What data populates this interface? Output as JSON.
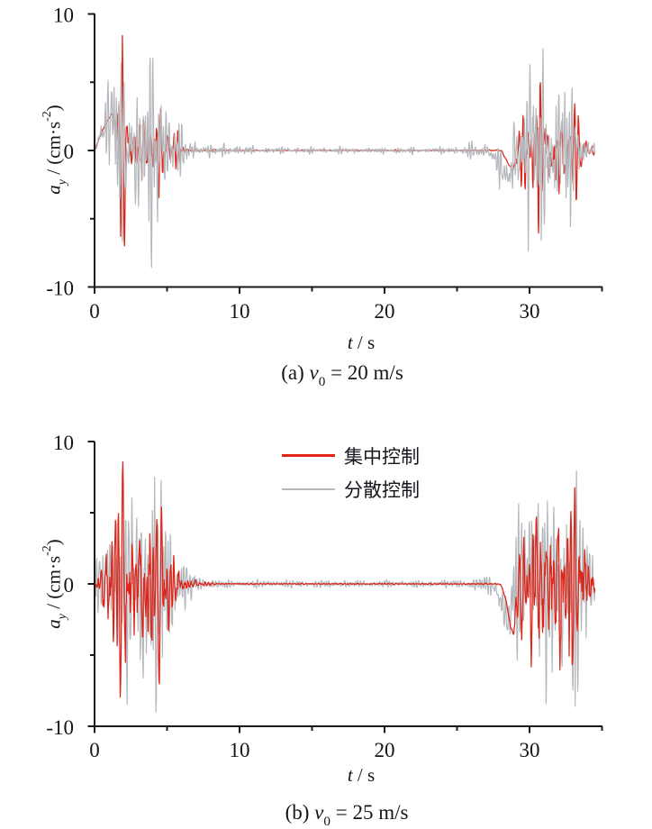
{
  "figure": {
    "ylabel": {
      "var": "a",
      "sub": "y",
      "mid": " / (cm·s",
      "sup": "-2",
      "end": ")"
    },
    "xlabel": {
      "var": "t",
      "rest": " / s"
    },
    "captions": [
      {
        "prefix": "(a) ",
        "var": "v",
        "sub": "0",
        "rest": " = 20 m/s"
      },
      {
        "prefix": "(b) ",
        "var": "v",
        "sub": "0",
        "rest": " = 25 m/s"
      }
    ],
    "legend": {
      "items": [
        {
          "label": "集中控制",
          "color": "#e02317",
          "thickness": 3
        },
        {
          "label": "分散控制",
          "color": "#b4b8bd",
          "thickness": 2
        }
      ]
    }
  },
  "chart_data": [
    {
      "type": "line",
      "title": "",
      "xlabel": "t / s",
      "ylabel": "a_y / (cm·s-2)",
      "caption": "(a) v0 = 20 m/s",
      "xlim": [
        0,
        35
      ],
      "ylim": [
        -10,
        10
      ],
      "xticks": [
        0,
        10,
        20,
        30
      ],
      "xticks_minor": [
        5,
        15,
        25,
        35
      ],
      "yticks": [
        10,
        0,
        -10
      ],
      "yticks_minor": [
        5,
        -5
      ],
      "series": [
        {
          "name": "集中控制",
          "key": "centralized",
          "color": "#e02317",
          "width": 1.25,
          "seed": 5,
          "scale": 1.55,
          "noise": 0.42,
          "flipwin": [
            1.5,
            2.1
          ],
          "flipsign": 1,
          "am": [
            0.62,
            0.38,
            0.32
          ],
          "freqs": [
            [
              1.8,
              0.1
            ],
            [
              2.6,
              0.22
            ],
            [
              3.4,
              0.3
            ],
            [
              4.2,
              0.24
            ],
            [
              5.0,
              0.14
            ]
          ],
          "envelope": [
            [
              0,
              0.05
            ],
            [
              0.9,
              0.12
            ],
            [
              1.25,
              0.6
            ],
            [
              1.5,
              3.5
            ],
            [
              1.75,
              8.5
            ],
            [
              1.95,
              6
            ],
            [
              2.2,
              3.6
            ],
            [
              2.6,
              4
            ],
            [
              3,
              4.4
            ],
            [
              3.4,
              4.6
            ],
            [
              3.8,
              4
            ],
            [
              4.2,
              3.4
            ],
            [
              4.6,
              2.9
            ],
            [
              5,
              2.5
            ],
            [
              5.4,
              1.8
            ],
            [
              5.8,
              1.1
            ],
            [
              6.2,
              0.6
            ],
            [
              6.6,
              0.3
            ],
            [
              7,
              0.15
            ],
            [
              7.8,
              0.08
            ],
            [
              9,
              0.05
            ],
            [
              24,
              0.05
            ],
            [
              26,
              0.05
            ],
            [
              27.5,
              0.06
            ],
            [
              28.4,
              0.1
            ],
            [
              28.8,
              0.25
            ],
            [
              29.1,
              1.4
            ],
            [
              29.4,
              2.8
            ],
            [
              29.8,
              3.9
            ],
            [
              30.2,
              4.8
            ],
            [
              30.6,
              5.3
            ],
            [
              31,
              5.5
            ],
            [
              31.4,
              4.8
            ],
            [
              31.8,
              5.2
            ],
            [
              32.2,
              5.6
            ],
            [
              32.6,
              4.6
            ],
            [
              33,
              3.8
            ],
            [
              33.4,
              2.5
            ],
            [
              33.8,
              1.7
            ],
            [
              34.2,
              0.9
            ],
            [
              34.5,
              0.45
            ]
          ],
          "base": [
            [
              0,
              0
            ],
            [
              0.25,
              0.7
            ],
            [
              0.6,
              1.6
            ],
            [
              0.95,
              2.3
            ],
            [
              1.2,
              2.65
            ],
            [
              1.4,
              2.3
            ],
            [
              1.6,
              0.8
            ],
            [
              1.75,
              0
            ],
            [
              28.05,
              0
            ],
            [
              28.35,
              -0.6
            ],
            [
              28.65,
              -1.2
            ],
            [
              28.9,
              -1.4
            ],
            [
              29.1,
              -0.6
            ],
            [
              29.3,
              0
            ]
          ]
        },
        {
          "name": "分散控制",
          "key": "distributed",
          "color": "#b4b8bd",
          "width": 1.2,
          "seed": 11,
          "scale": 1.6,
          "noise": 0.5,
          "flipwin": [
            3.9,
            4.7
          ],
          "flipsign": -1,
          "am": [
            0.72,
            0.28,
            0.45
          ],
          "freqs": [
            [
              2.5,
              0.05
            ],
            [
              3.5,
              0.12
            ],
            [
              4.5,
              0.3
            ],
            [
              5.5,
              0.3
            ],
            [
              6.5,
              0.23
            ]
          ],
          "envelope": [
            [
              0,
              0.25
            ],
            [
              0.4,
              1.2
            ],
            [
              0.8,
              2.6
            ],
            [
              1.2,
              3.9
            ],
            [
              1.5,
              5.3
            ],
            [
              1.9,
              5.8
            ],
            [
              2.3,
              4.8
            ],
            [
              2.7,
              5.3
            ],
            [
              3.1,
              4.3
            ],
            [
              3.5,
              4.8
            ],
            [
              3.9,
              5.7
            ],
            [
              4.3,
              6.2
            ],
            [
              4.7,
              5
            ],
            [
              5.1,
              3.6
            ],
            [
              5.5,
              2.5
            ],
            [
              5.9,
              1.7
            ],
            [
              6.3,
              1.1
            ],
            [
              6.7,
              0.8
            ],
            [
              7.1,
              0.55
            ],
            [
              7.6,
              0.4
            ],
            [
              8.4,
              0.35
            ],
            [
              9.3,
              0.5
            ],
            [
              10,
              0.3
            ],
            [
              11,
              0.22
            ],
            [
              13,
              0.2
            ],
            [
              24,
              0.2
            ],
            [
              25.3,
              0.3
            ],
            [
              26,
              0.55
            ],
            [
              26.6,
              0.45
            ],
            [
              27.2,
              0.8
            ],
            [
              27.7,
              1.3
            ],
            [
              28.2,
              1.2
            ],
            [
              28.6,
              1.6
            ],
            [
              28.9,
              2.6
            ],
            [
              29.2,
              4.2
            ],
            [
              29.6,
              5.4
            ],
            [
              30,
              6
            ],
            [
              30.4,
              5.6
            ],
            [
              30.8,
              6.1
            ],
            [
              31.2,
              5.3
            ],
            [
              31.6,
              5
            ],
            [
              32,
              5.5
            ],
            [
              32.4,
              5.7
            ],
            [
              32.8,
              4.4
            ],
            [
              33.2,
              3.1
            ],
            [
              33.6,
              1.9
            ],
            [
              34,
              1.1
            ],
            [
              34.5,
              0.7
            ]
          ],
          "base": [
            [
              0,
              0
            ],
            [
              0.3,
              0.8
            ],
            [
              0.7,
              1.8
            ],
            [
              1,
              2.3
            ],
            [
              1.25,
              2.6
            ],
            [
              1.45,
              1.6
            ],
            [
              1.6,
              0
            ],
            [
              27.3,
              0
            ],
            [
              27.8,
              -0.9
            ],
            [
              28.3,
              -1.7
            ],
            [
              28.6,
              -2
            ],
            [
              28.9,
              -0.8
            ],
            [
              29.15,
              0
            ]
          ]
        }
      ]
    },
    {
      "type": "line",
      "title": "",
      "xlabel": "t / s",
      "ylabel": "a_y / (cm·s-2)",
      "caption": "(b) v0 = 25 m/s",
      "xlim": [
        0,
        35
      ],
      "ylim": [
        -10,
        10
      ],
      "xticks": [
        0,
        10,
        20,
        30
      ],
      "xticks_minor": [
        5,
        15,
        25,
        35
      ],
      "yticks": [
        10,
        0,
        -10
      ],
      "yticks_minor": [
        5,
        -5
      ],
      "legend": [
        "集中控制",
        "分散控制"
      ],
      "series": [
        {
          "name": "分散控制",
          "key": "distributed",
          "color": "#b4b8bd",
          "width": 1.2,
          "seed": 23,
          "scale": 1.6,
          "noise": 0.5,
          "flipwin": [
            3.5,
            4.6
          ],
          "flipsign": -1,
          "am": [
            0.72,
            0.28,
            0.45
          ],
          "freqs": [
            [
              2.5,
              0.05
            ],
            [
              3.5,
              0.12
            ],
            [
              4.5,
              0.3
            ],
            [
              5.5,
              0.3
            ],
            [
              6.5,
              0.23
            ]
          ],
          "envelope": [
            [
              0,
              1.6
            ],
            [
              0.4,
              2.6
            ],
            [
              0.8,
              3.6
            ],
            [
              1.2,
              4.4
            ],
            [
              1.6,
              5.4
            ],
            [
              2,
              6.4
            ],
            [
              2.4,
              6.8
            ],
            [
              2.8,
              7.4
            ],
            [
              3.2,
              8
            ],
            [
              3.6,
              8.8
            ],
            [
              4,
              9.2
            ],
            [
              4.4,
              8.4
            ],
            [
              4.8,
              6.8
            ],
            [
              5.2,
              5
            ],
            [
              5.6,
              3.4
            ],
            [
              6,
              2.2
            ],
            [
              6.4,
              1.4
            ],
            [
              6.8,
              0.8
            ],
            [
              7.2,
              0.5
            ],
            [
              8,
              0.35
            ],
            [
              9,
              0.28
            ],
            [
              10,
              0.24
            ],
            [
              24,
              0.24
            ],
            [
              25.5,
              0.3
            ],
            [
              26.5,
              0.45
            ],
            [
              27.2,
              0.7
            ],
            [
              27.8,
              1.1
            ],
            [
              28.3,
              1.4
            ],
            [
              28.7,
              2
            ],
            [
              29,
              3.2
            ],
            [
              29.4,
              5
            ],
            [
              29.8,
              6
            ],
            [
              30.2,
              7
            ],
            [
              30.6,
              7.4
            ],
            [
              31,
              6.8
            ],
            [
              31.4,
              6.4
            ],
            [
              31.8,
              7.4
            ],
            [
              32.2,
              7.8
            ],
            [
              32.6,
              8.3
            ],
            [
              33,
              8.8
            ],
            [
              33.4,
              7
            ],
            [
              33.8,
              5.8
            ],
            [
              34.2,
              3.8
            ],
            [
              34.5,
              2
            ]
          ],
          "base": [
            [
              27.4,
              0
            ],
            [
              27.9,
              -0.9
            ],
            [
              28.3,
              -2
            ],
            [
              28.6,
              -2.4
            ],
            [
              28.9,
              -1
            ],
            [
              29.2,
              0
            ]
          ]
        },
        {
          "name": "集中控制",
          "key": "centralized",
          "color": "#e02317",
          "width": 1.25,
          "seed": 17,
          "scale": 1.55,
          "noise": 0.42,
          "flipwin": [
            1.6,
            2.2
          ],
          "flipsign": 1,
          "am": [
            0.62,
            0.38,
            0.32
          ],
          "freqs": [
            [
              1.8,
              0.1
            ],
            [
              2.6,
              0.22
            ],
            [
              3.4,
              0.3
            ],
            [
              4.2,
              0.24
            ],
            [
              5.0,
              0.14
            ]
          ],
          "envelope": [
            [
              0,
              0.9
            ],
            [
              0.3,
              1.6
            ],
            [
              0.8,
              3.2
            ],
            [
              1.2,
              5
            ],
            [
              1.6,
              7
            ],
            [
              1.9,
              8.5
            ],
            [
              2.3,
              5.8
            ],
            [
              2.7,
              7.6
            ],
            [
              3.1,
              8.2
            ],
            [
              3.5,
              6.8
            ],
            [
              3.9,
              7.2
            ],
            [
              4.3,
              5.8
            ],
            [
              4.7,
              4.8
            ],
            [
              5.1,
              3.8
            ],
            [
              5.5,
              2.6
            ],
            [
              5.9,
              1.7
            ],
            [
              6.3,
              1
            ],
            [
              6.7,
              0.55
            ],
            [
              7.1,
              0.3
            ],
            [
              7.6,
              0.15
            ],
            [
              8.4,
              0.08
            ],
            [
              10,
              0.05
            ],
            [
              24,
              0.05
            ],
            [
              27,
              0.06
            ],
            [
              28.2,
              0.1
            ],
            [
              28.7,
              0.3
            ],
            [
              29,
              1.4
            ],
            [
              29.4,
              3
            ],
            [
              29.8,
              4.8
            ],
            [
              30.2,
              6.2
            ],
            [
              30.6,
              7.2
            ],
            [
              31,
              8.6
            ],
            [
              31.4,
              6.6
            ],
            [
              31.8,
              5.8
            ],
            [
              32.2,
              6.8
            ],
            [
              32.6,
              6.2
            ],
            [
              33,
              7.2
            ],
            [
              33.4,
              5.6
            ],
            [
              33.8,
              4.6
            ],
            [
              34.2,
              2.8
            ],
            [
              34.5,
              1.4
            ]
          ],
          "base": [
            [
              28.0,
              0
            ],
            [
              28.35,
              -1
            ],
            [
              28.65,
              -2.8
            ],
            [
              28.85,
              -3.6
            ],
            [
              29.05,
              -2
            ],
            [
              29.3,
              0
            ]
          ]
        }
      ]
    }
  ]
}
